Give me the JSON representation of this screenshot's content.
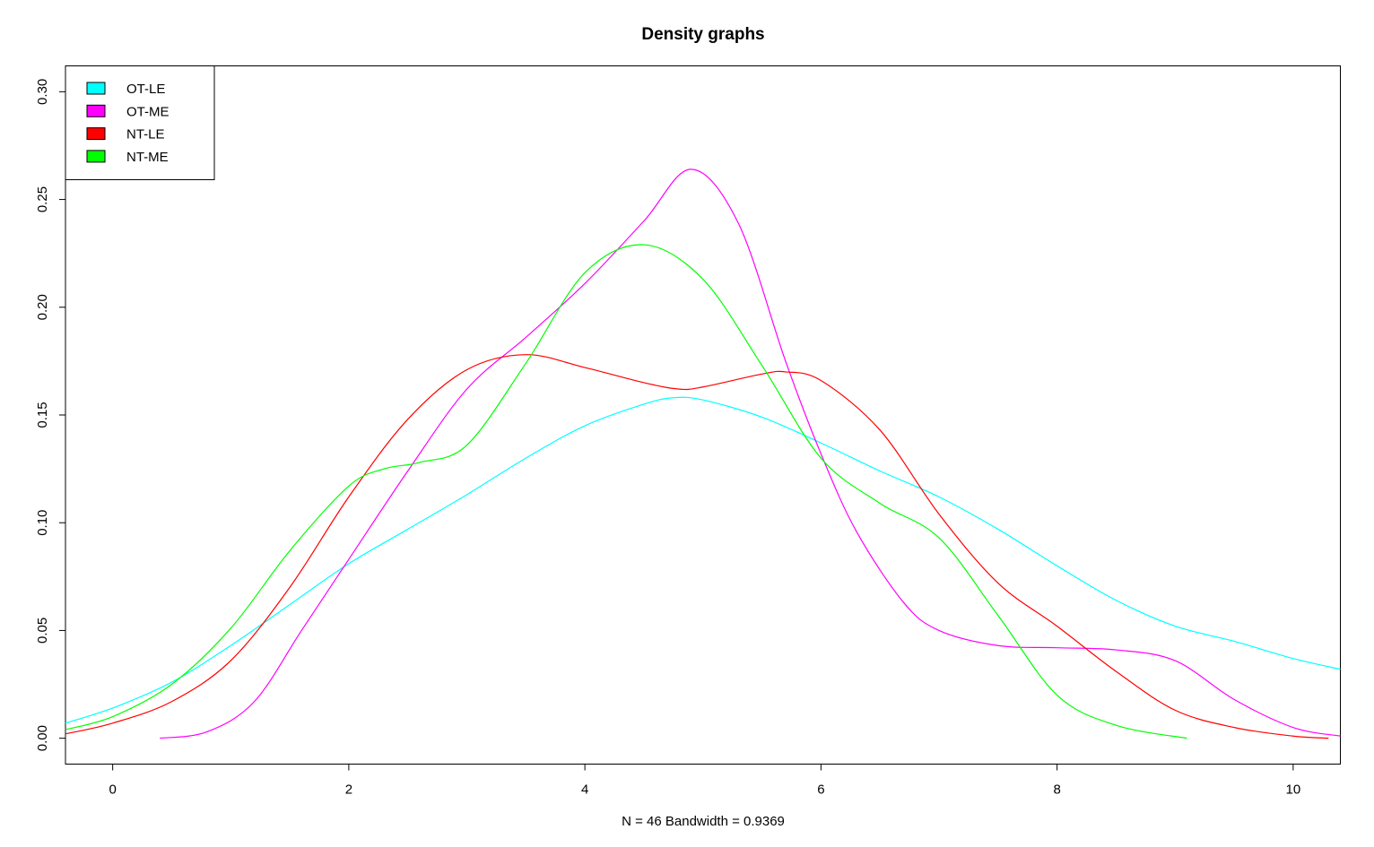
{
  "chart_data": {
    "type": "line",
    "title": "Density graphs",
    "xlabel": "N = 46 Bandwidth = 0.9369",
    "ylabel": "",
    "xlim": [
      -0.4,
      10.4
    ],
    "ylim": [
      -0.012,
      0.312
    ],
    "xticks": [
      0,
      2,
      4,
      6,
      8,
      10
    ],
    "xtick_labels": [
      "0",
      "2",
      "4",
      "6",
      "8",
      "10"
    ],
    "yticks": [
      0.0,
      0.05,
      0.1,
      0.15,
      0.2,
      0.25,
      0.3
    ],
    "ytick_labels": [
      "0.00",
      "0.05",
      "0.10",
      "0.15",
      "0.20",
      "0.25",
      "0.30"
    ],
    "grid": false,
    "legend_position": "top-left",
    "series": [
      {
        "name": "OT-LE",
        "color": "#00FFFF",
        "x": [
          -0.4,
          0,
          0.5,
          1,
          1.5,
          2,
          2.5,
          3,
          3.5,
          4,
          4.5,
          4.75,
          5,
          5.5,
          6,
          6.5,
          7,
          7.5,
          8,
          8.5,
          9,
          9.5,
          10,
          10.4
        ],
        "y": [
          0.007,
          0.014,
          0.026,
          0.043,
          0.062,
          0.081,
          0.097,
          0.113,
          0.13,
          0.145,
          0.155,
          0.158,
          0.157,
          0.149,
          0.137,
          0.124,
          0.112,
          0.097,
          0.08,
          0.064,
          0.052,
          0.045,
          0.037,
          0.032
        ]
      },
      {
        "name": "OT-ME",
        "color": "#FF00FF",
        "x": [
          0.4,
          0.8,
          1.2,
          1.6,
          2.0,
          2.5,
          3.0,
          3.5,
          4.0,
          4.5,
          4.9,
          5.3,
          5.7,
          6.0,
          6.3,
          6.7,
          7.0,
          7.5,
          8.0,
          8.5,
          9.0,
          9.5,
          10.0,
          10.4
        ],
        "y": [
          0.0,
          0.003,
          0.017,
          0.05,
          0.083,
          0.124,
          0.162,
          0.186,
          0.211,
          0.24,
          0.264,
          0.239,
          0.175,
          0.132,
          0.096,
          0.063,
          0.05,
          0.043,
          0.042,
          0.041,
          0.036,
          0.018,
          0.005,
          0.001
        ]
      },
      {
        "name": "NT-LE",
        "color": "#FF0000",
        "x": [
          -0.4,
          0,
          0.5,
          1,
          1.5,
          2,
          2.5,
          3,
          3.5,
          4,
          4.5,
          4.8,
          5,
          5.5,
          5.7,
          6,
          6.5,
          7,
          7.5,
          8,
          8.5,
          9,
          9.5,
          10,
          10.3
        ],
        "y": [
          0.002,
          0.007,
          0.017,
          0.036,
          0.07,
          0.112,
          0.148,
          0.171,
          0.178,
          0.172,
          0.165,
          0.162,
          0.163,
          0.169,
          0.17,
          0.166,
          0.143,
          0.104,
          0.072,
          0.052,
          0.031,
          0.013,
          0.005,
          0.001,
          0.0
        ]
      },
      {
        "name": "NT-ME",
        "color": "#00FF00",
        "x": [
          -0.4,
          0,
          0.5,
          1,
          1.5,
          2,
          2.3,
          2.6,
          3,
          3.5,
          4,
          4.5,
          5,
          5.5,
          6,
          6.5,
          7,
          7.5,
          8,
          8.5,
          9.1
        ],
        "y": [
          0.004,
          0.01,
          0.025,
          0.051,
          0.087,
          0.117,
          0.125,
          0.128,
          0.136,
          0.174,
          0.216,
          0.229,
          0.213,
          0.173,
          0.13,
          0.109,
          0.093,
          0.057,
          0.02,
          0.006,
          0.0
        ]
      }
    ]
  }
}
